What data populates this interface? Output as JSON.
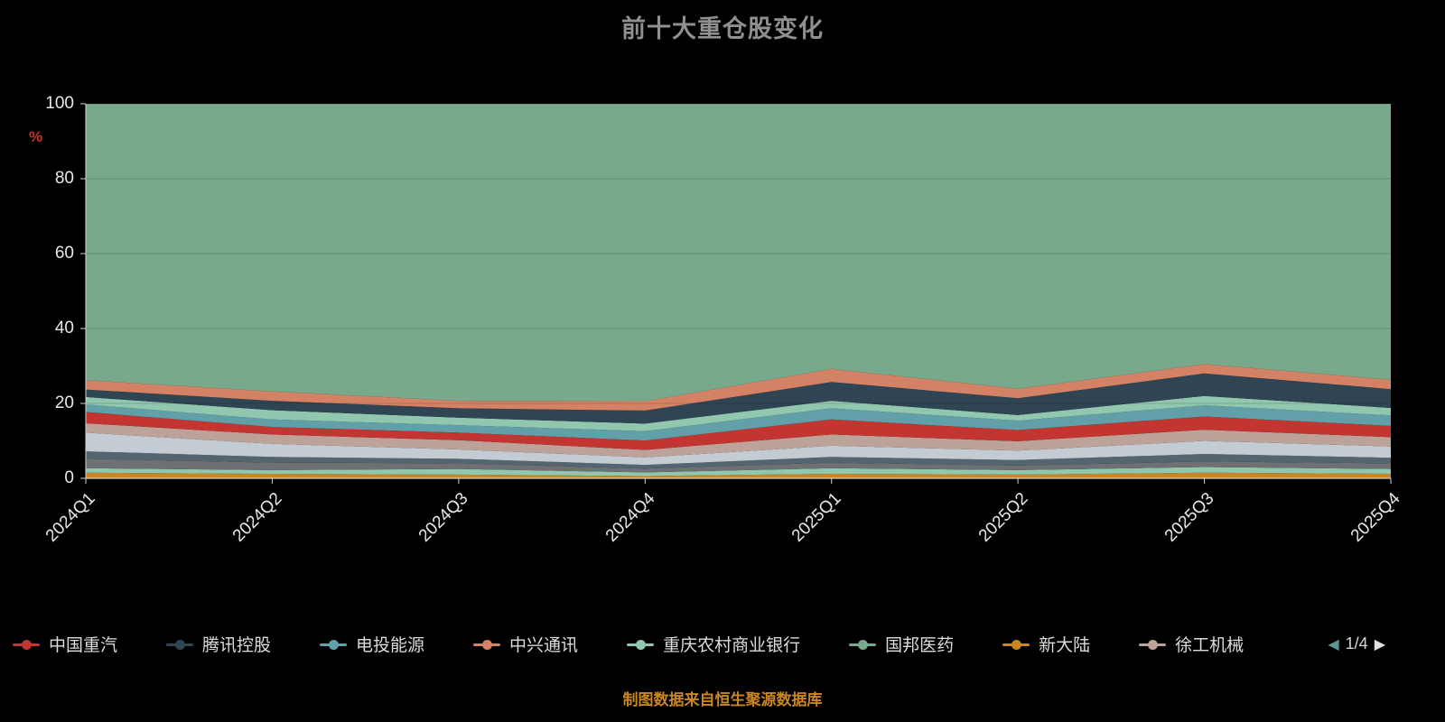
{
  "title": "前十大重仓股变化",
  "y_axis_name": "%",
  "footer": "制图数据来自恒生聚源数据库",
  "legend": {
    "items": [
      {
        "label": "中国重汽",
        "color": "#c23531"
      },
      {
        "label": "腾讯控股",
        "color": "#2f4554"
      },
      {
        "label": "电投能源",
        "color": "#61a0a8"
      },
      {
        "label": "中兴通讯",
        "color": "#d48265"
      },
      {
        "label": "重庆农村商业银行",
        "color": "#91c7ae"
      },
      {
        "label": "国邦医药",
        "color": "#78a98c"
      },
      {
        "label": "新大陆",
        "color": "#ca8622"
      },
      {
        "label": "徐工机械",
        "color": "#bda29a"
      }
    ],
    "page": "1/4",
    "prev_icon": "◀",
    "next_icon": "▶"
  },
  "chart_data": {
    "type": "area",
    "stacked": true,
    "title": "前十大重仓股变化",
    "xlabel": "",
    "ylabel": "%",
    "ylim": [
      0,
      100
    ],
    "y_ticks": [
      0,
      20,
      40,
      60,
      80,
      100
    ],
    "grid": true,
    "legend_position": "bottom",
    "categories": [
      "2024Q1",
      "2024Q2",
      "2024Q3",
      "2024Q4",
      "2025Q1",
      "2025Q2",
      "2025Q3",
      "2025Q4"
    ],
    "series": [
      {
        "name": "新大陆",
        "color": "#ca8622",
        "values": [
          1.5,
          1.2,
          1.0,
          0.6,
          1.2,
          1.0,
          1.5,
          1.2
        ]
      },
      {
        "name": "重庆农村商业银行",
        "color": "#91c7ae",
        "values": [
          1.2,
          1.0,
          1.5,
          1.0,
          1.5,
          1.2,
          1.5,
          1.3
        ]
      },
      {
        "name": "",
        "color": "#6e7074",
        "values": [
          2.5,
          2.0,
          1.5,
          1.0,
          1.5,
          1.2,
          1.5,
          1.5
        ]
      },
      {
        "name": "",
        "color": "#546570",
        "values": [
          2.0,
          1.5,
          1.2,
          1.0,
          1.5,
          1.5,
          2.0,
          1.5
        ]
      },
      {
        "name": "",
        "color": "#c4ccd3",
        "values": [
          5.0,
          3.5,
          2.5,
          2.0,
          3.0,
          2.5,
          3.5,
          3.0
        ]
      },
      {
        "name": "徐工机械",
        "color": "#bda29a",
        "values": [
          2.5,
          2.5,
          2.5,
          2.0,
          3.0,
          2.5,
          3.0,
          2.5
        ]
      },
      {
        "name": "中国重汽",
        "color": "#c23531",
        "values": [
          3.0,
          2.0,
          2.0,
          2.5,
          4.0,
          3.0,
          3.5,
          3.0
        ]
      },
      {
        "name": "电投能源",
        "color": "#61a0a8",
        "values": [
          2.0,
          2.0,
          2.0,
          2.5,
          3.0,
          2.5,
          3.0,
          2.8
        ]
      },
      {
        "name": "",
        "color": "#91c7ae",
        "values": [
          2.0,
          2.5,
          2.0,
          2.0,
          2.0,
          1.5,
          2.5,
          2.0
        ]
      },
      {
        "name": "腾讯控股",
        "color": "#2f4554",
        "values": [
          2.0,
          2.5,
          2.5,
          3.5,
          5.0,
          4.5,
          6.0,
          5.0
        ]
      },
      {
        "name": "中兴通讯",
        "color": "#d48265",
        "values": [
          2.5,
          2.5,
          2.0,
          2.5,
          3.5,
          2.5,
          2.5,
          2.5
        ]
      },
      {
        "name": "国邦医药",
        "color": "#78a98c",
        "values": [
          73.8,
          76.8,
          79.3,
          79.4,
          70.8,
          76.1,
          69.5,
          73.7
        ]
      }
    ]
  },
  "colors": {
    "background": "#000000",
    "title": "#909090",
    "axis_label": "#e8e8e8",
    "axis_line": "#cfd4d6",
    "y_name": "#d03030",
    "footer": "#ca8622"
  }
}
